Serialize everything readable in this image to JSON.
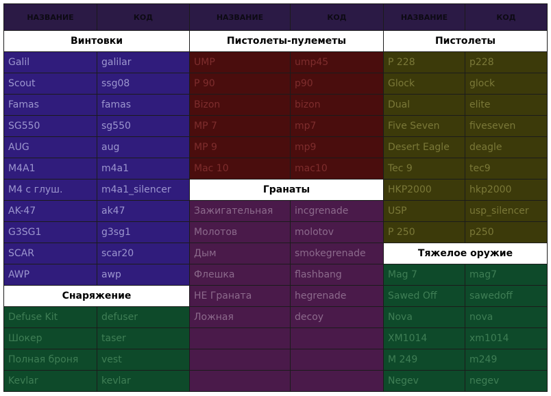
{
  "header": {
    "columns": [
      "НАЗВАНИЕ",
      "КОД",
      "НАЗВАНИЕ",
      "КОД",
      "НАЗВАНИЕ",
      "КОД"
    ]
  },
  "groups": [
    {
      "sections": [
        {
          "title": "Винтовки",
          "rows": [
            [
              "Galil",
              "galilar"
            ],
            [
              "Scout",
              "ssg08"
            ],
            [
              "Famas",
              "famas"
            ],
            [
              "SG550",
              "sg550"
            ],
            [
              "AUG",
              "aug"
            ],
            [
              "M4A1",
              "m4a1"
            ],
            [
              "M4 с глуш.",
              "m4a1_silencer"
            ],
            [
              "AK-47",
              "ak47"
            ],
            [
              "G3SG1",
              "g3sg1"
            ],
            [
              "SCAR",
              "scar20"
            ],
            [
              "AWP",
              "awp"
            ]
          ]
        },
        {
          "title": "Снаряжение",
          "rows": [
            [
              "Defuse Kit",
              "defuser"
            ],
            [
              "Шокер",
              "taser"
            ],
            [
              "Полная броня",
              "vest"
            ],
            [
              "Kevlar",
              "kevlar"
            ]
          ]
        }
      ]
    },
    {
      "sections": [
        {
          "title": "Пистолеты-пулеметы",
          "rows": [
            [
              "UMP",
              "ump45"
            ],
            [
              "P 90",
              "p90"
            ],
            [
              "Bizon",
              "bizon"
            ],
            [
              "MP 7",
              "mp7"
            ],
            [
              "MP 9",
              "mp9"
            ],
            [
              "Mac 10",
              "mac10"
            ]
          ]
        },
        {
          "title": "Гранаты",
          "rows": [
            [
              "Зажигательная",
              "incgrenade"
            ],
            [
              "Молотов",
              "molotov"
            ],
            [
              "Дым",
              "smokegrenade"
            ],
            [
              "Флешка",
              "flashbang"
            ],
            [
              "HE Граната",
              "hegrenade"
            ],
            [
              "Ложная",
              "decoy"
            ]
          ]
        }
      ]
    },
    {
      "sections": [
        {
          "title": "Пистолеты",
          "rows": [
            [
              "P 228",
              "p228"
            ],
            [
              "Glock",
              "glock"
            ],
            [
              "Dual",
              "elite"
            ],
            [
              "Five Seven",
              "fiveseven"
            ],
            [
              "Desert Eagle",
              "deagle"
            ],
            [
              "Tec 9",
              "tec9"
            ],
            [
              "HKP2000",
              "hkp2000"
            ],
            [
              "USP",
              "usp_silencer"
            ],
            [
              "P 250",
              "p250"
            ]
          ]
        },
        {
          "title": "Тяжелое оружие",
          "rows": [
            [
              "Mag 7",
              "mag7"
            ],
            [
              "Sawed Off",
              "sawedoff"
            ],
            [
              "Nova",
              "nova"
            ],
            [
              "XM1014",
              "xm1014"
            ],
            [
              "M 249",
              "m249"
            ],
            [
              "Negev",
              "negev"
            ]
          ]
        }
      ]
    }
  ]
}
